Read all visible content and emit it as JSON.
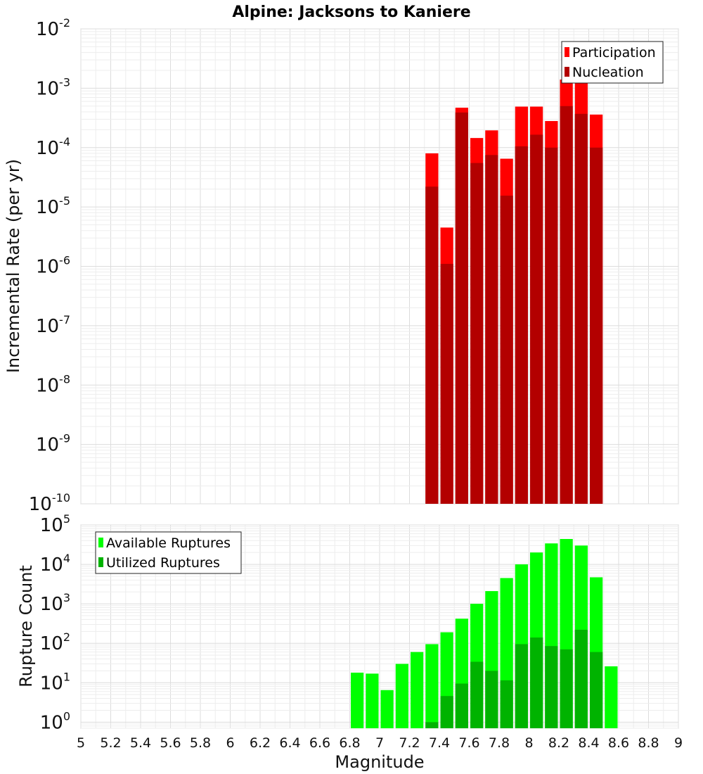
{
  "title": "Alpine: Jacksons to Kaniere",
  "chart_data": [
    {
      "type": "bar",
      "subplot": "top",
      "yscale": "log",
      "ylabel": "Incremental Rate (per yr)",
      "xlim": [
        5,
        9
      ],
      "ylim": [
        1e-10,
        0.01
      ],
      "y_tick_exponents": [
        -2,
        -3,
        -4,
        -5,
        -6,
        -7,
        -8,
        -9,
        -10
      ],
      "grid": true,
      "legend_position": "top-right",
      "x": [
        7.35,
        7.45,
        7.55,
        7.65,
        7.75,
        7.85,
        7.95,
        8.05,
        8.15,
        8.25,
        8.35,
        8.45
      ],
      "series": [
        {
          "name": "Participation",
          "color": "#ff0000",
          "values": [
            8e-05,
            4.5e-06,
            0.00047,
            0.000145,
            0.000195,
            6.5e-05,
            0.00049,
            0.00049,
            0.00028,
            0.0014,
            0.0013,
            0.00036
          ]
        },
        {
          "name": "Nucleation",
          "color": "#b30000",
          "values": [
            2.2e-05,
            1.1e-06,
            0.00039,
            5.5e-05,
            7.5e-05,
            1.55e-05,
            0.000105,
            0.000165,
            0.0001,
            0.0005,
            0.00037,
            0.0001
          ]
        }
      ]
    },
    {
      "type": "bar",
      "subplot": "bottom",
      "yscale": "log",
      "xlabel": "Magnitude",
      "ylabel": "Rupture Count",
      "xlim": [
        5,
        9
      ],
      "ylim": [
        0.7,
        100000.0
      ],
      "y_tick_exponents": [
        5,
        4,
        3,
        2,
        1,
        0
      ],
      "grid": true,
      "legend_position": "top-left",
      "x_ticks": [
        "5",
        "5.2",
        "5.4",
        "5.6",
        "5.8",
        "6",
        "6.2",
        "6.4",
        "6.6",
        "6.8",
        "7",
        "7.2",
        "7.4",
        "7.6",
        "7.8",
        "8",
        "8.2",
        "8.4",
        "8.6",
        "8.8",
        "9"
      ],
      "x": [
        6.85,
        6.95,
        7.05,
        7.15,
        7.25,
        7.35,
        7.45,
        7.55,
        7.65,
        7.75,
        7.85,
        7.95,
        8.05,
        8.15,
        8.25,
        8.35,
        8.45,
        8.55
      ],
      "series": [
        {
          "name": "Available Ruptures",
          "color": "#00ff00",
          "values": [
            18,
            17,
            6.5,
            30,
            60,
            95,
            190,
            420,
            1000,
            2100,
            4500,
            10000,
            20000,
            34000,
            44000,
            30000,
            4700,
            26
          ]
        },
        {
          "name": "Utilized Ruptures",
          "color": "#00b300",
          "values": [
            0,
            0,
            0,
            0,
            0,
            1,
            4.6,
            9.5,
            34,
            20,
            11.5,
            95,
            140,
            85,
            70,
            220,
            60,
            0
          ]
        }
      ]
    }
  ]
}
